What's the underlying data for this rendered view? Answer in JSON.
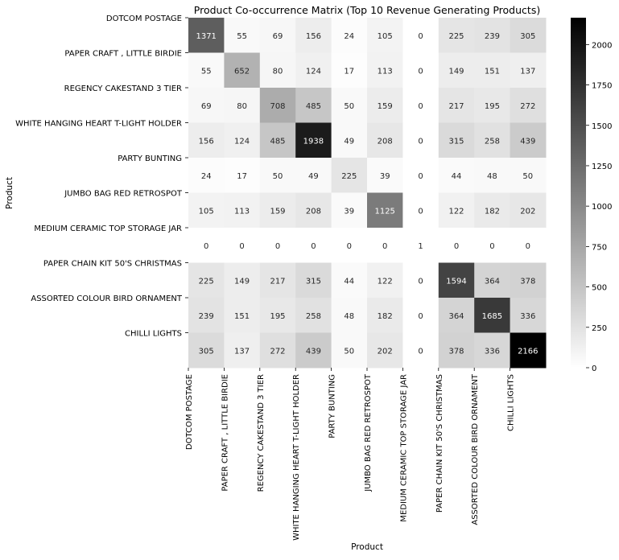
{
  "chart_data": {
    "type": "heatmap",
    "title": "Product Co-occurrence Matrix (Top 10 Revenue Generating Products)",
    "xlabel": "Product",
    "ylabel": "Product",
    "categories": [
      "DOTCOM POSTAGE",
      "PAPER CRAFT , LITTLE BIRDIE",
      "REGENCY CAKESTAND 3 TIER",
      "WHITE HANGING HEART T-LIGHT HOLDER",
      "PARTY BUNTING",
      "JUMBO BAG RED RETROSPOT",
      "MEDIUM CERAMIC TOP STORAGE JAR",
      "PAPER CHAIN KIT 50'S CHRISTMAS",
      "ASSORTED COLOUR BIRD ORNAMENT",
      "CHILLI LIGHTS"
    ],
    "values": [
      [
        1371,
        55,
        69,
        156,
        24,
        105,
        0,
        225,
        239,
        305
      ],
      [
        55,
        652,
        80,
        124,
        17,
        113,
        0,
        149,
        151,
        137
      ],
      [
        69,
        80,
        708,
        485,
        50,
        159,
        0,
        217,
        195,
        272
      ],
      [
        156,
        124,
        485,
        1938,
        49,
        208,
        0,
        315,
        258,
        439
      ],
      [
        24,
        17,
        50,
        49,
        225,
        39,
        0,
        44,
        48,
        50
      ],
      [
        105,
        113,
        159,
        208,
        39,
        1125,
        0,
        122,
        182,
        202
      ],
      [
        0,
        0,
        0,
        0,
        0,
        0,
        1,
        0,
        0,
        0
      ],
      [
        225,
        149,
        217,
        315,
        44,
        122,
        0,
        1594,
        364,
        378
      ],
      [
        239,
        151,
        195,
        258,
        48,
        182,
        0,
        364,
        1685,
        336
      ],
      [
        305,
        137,
        272,
        439,
        50,
        202,
        0,
        378,
        336,
        2166
      ]
    ],
    "colormap": "greys",
    "color_range": [
      0,
      2166
    ],
    "colorbar_ticks": [
      0,
      250,
      500,
      750,
      1000,
      1250,
      1500,
      1750,
      2000
    ],
    "grid": false
  }
}
